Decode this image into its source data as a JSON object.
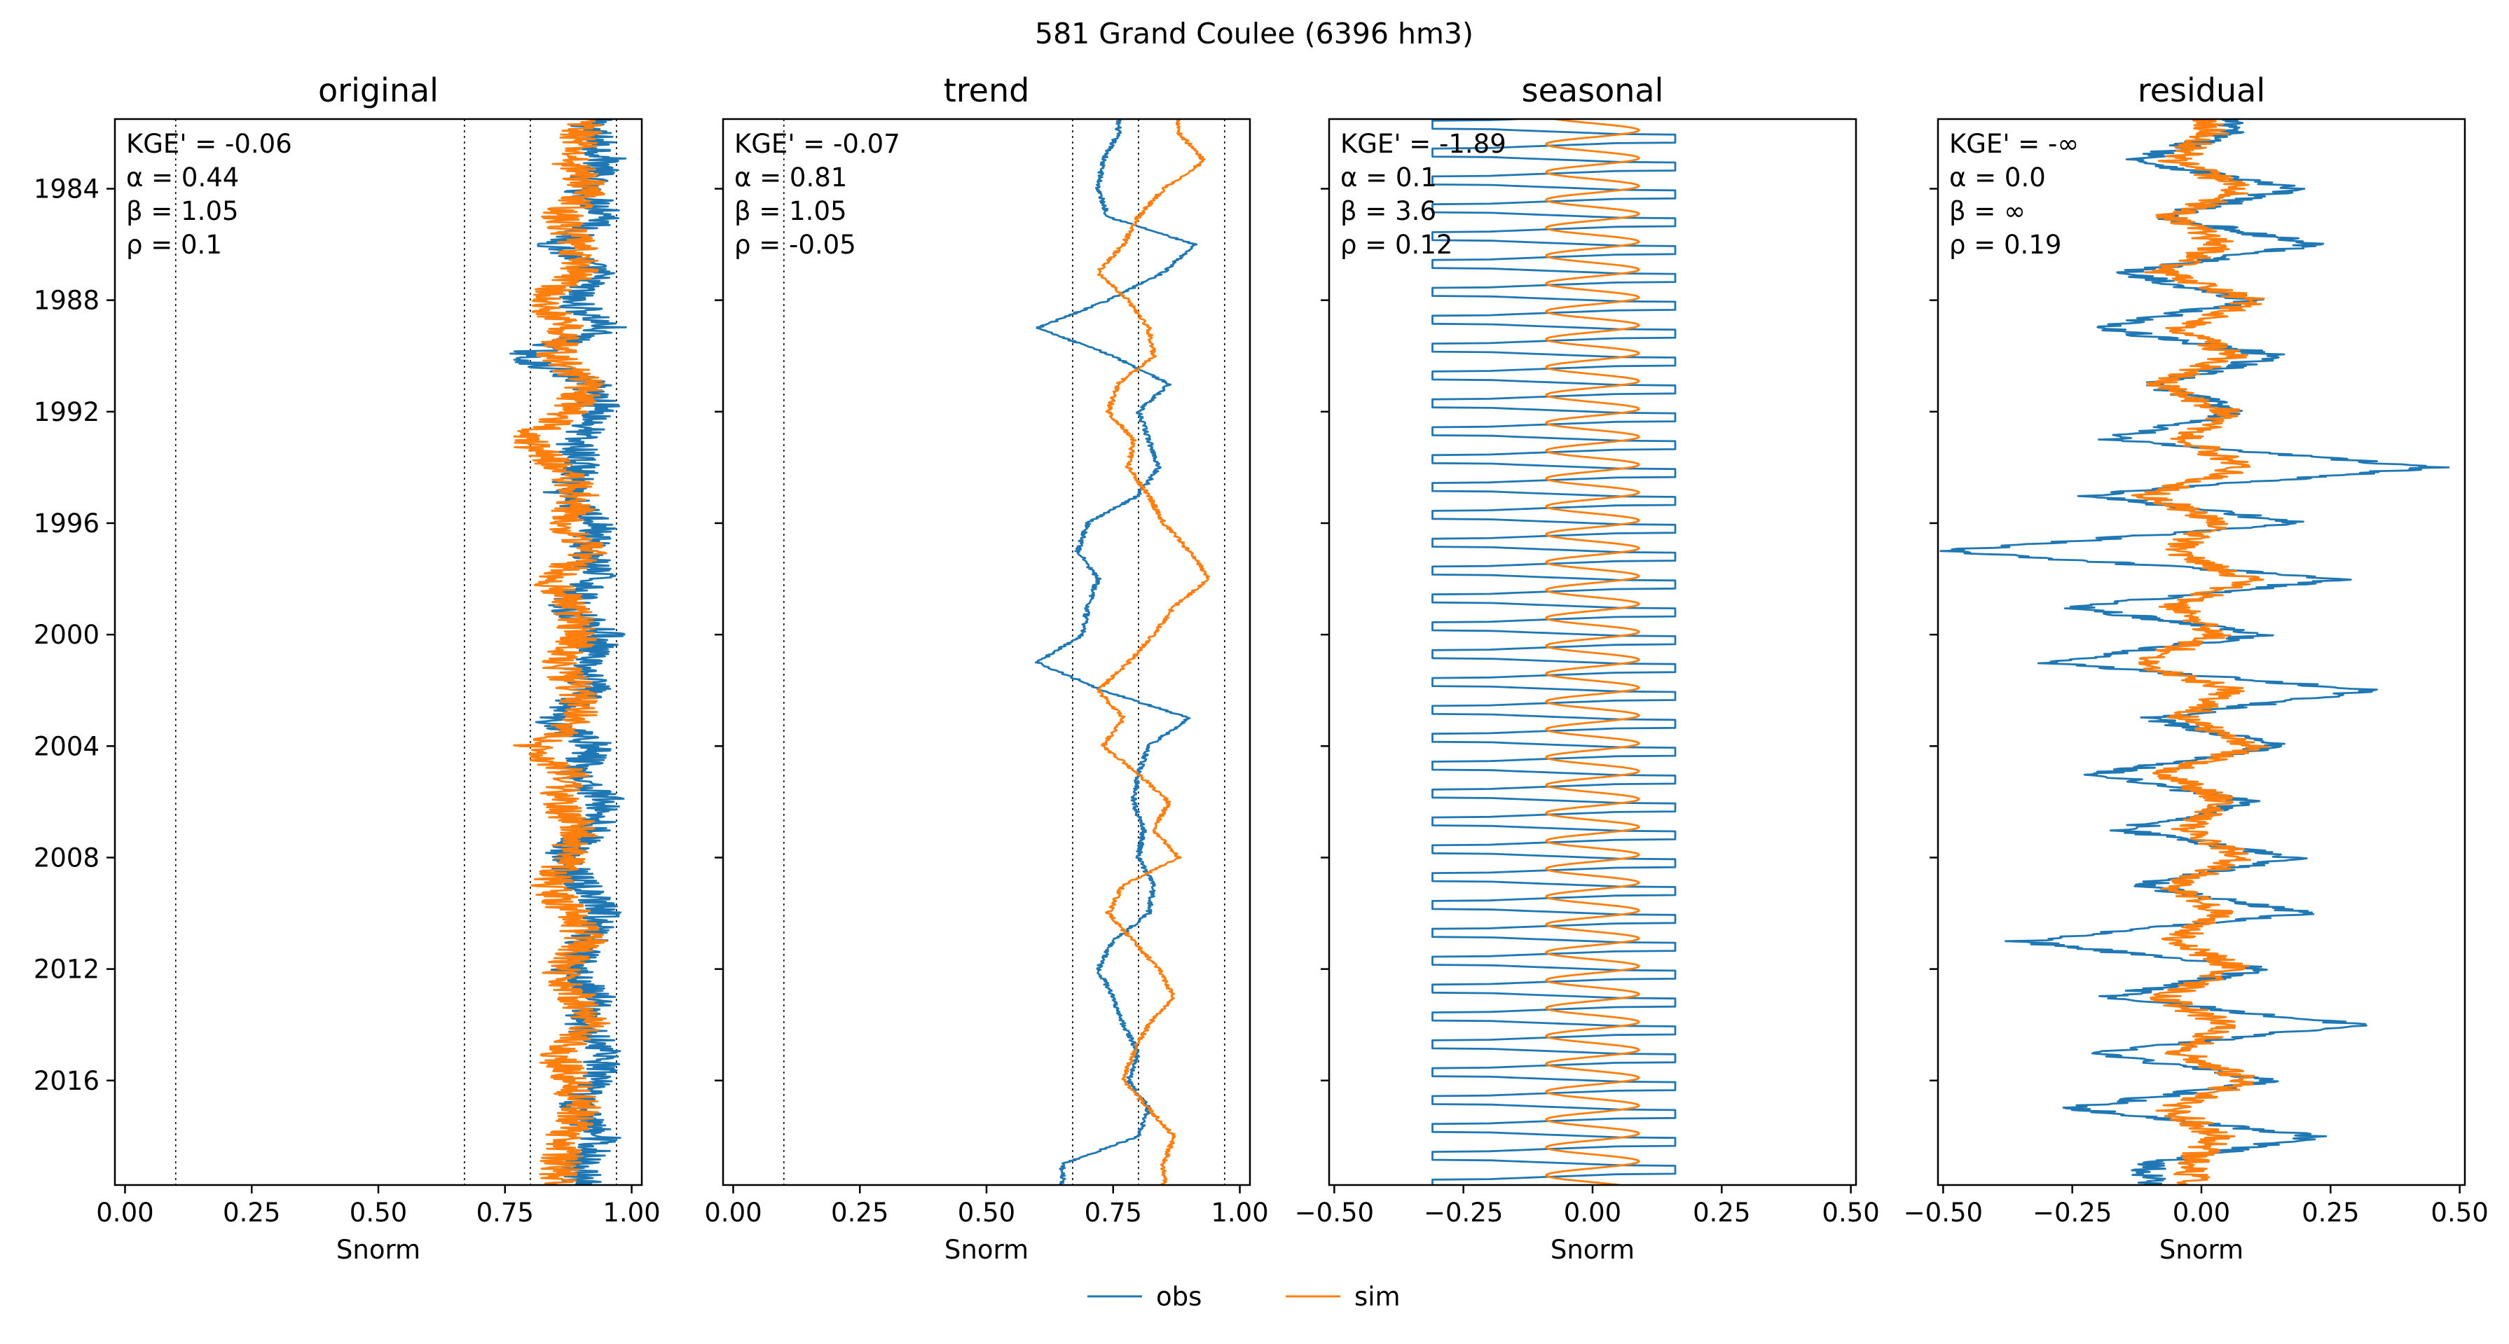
{
  "figure": {
    "suptitle": "581  Grand Coulee (6396 hm3)",
    "legend": [
      {
        "name": "obs",
        "color": "#1f77b4"
      },
      {
        "name": "sim",
        "color": "#ff7f0e"
      }
    ]
  },
  "chart_data": [
    {
      "type": "line",
      "title": "original",
      "xlabel": "Snorm",
      "ylabel": "",
      "xlim": [
        -0.02,
        1.02
      ],
      "xticks": [
        "0.00",
        "0.25",
        "0.50",
        "0.75",
        "1.00"
      ],
      "ylim": [
        "1981-07",
        "2019-10"
      ],
      "yticks": [
        "1984",
        "1988",
        "1992",
        "1996",
        "2000",
        "2004",
        "2008",
        "2012",
        "2016"
      ],
      "reference_lines_x": [
        0.1,
        0.67,
        0.8,
        0.97
      ],
      "stats": [
        "KGE' = -0.06",
        "α = 0.44",
        "β = 1.05",
        "ρ = 0.1"
      ],
      "series": [
        {
          "name": "obs",
          "color": "#1f77b4",
          "years": [
            1982,
            1983,
            1984,
            1985,
            1986,
            1987,
            1988,
            1989,
            1990,
            1991,
            1992,
            1993,
            1994,
            1995,
            1996,
            1997,
            1998,
            1999,
            2000,
            2001,
            2002,
            2003,
            2004,
            2005,
            2006,
            2007,
            2008,
            2009,
            2010,
            2011,
            2012,
            2013,
            2014,
            2015,
            2016,
            2017,
            2018,
            2019
          ],
          "values": [
            0.92,
            0.95,
            0.9,
            0.96,
            0.85,
            0.93,
            0.88,
            0.95,
            0.78,
            0.92,
            0.94,
            0.89,
            0.9,
            0.86,
            0.94,
            0.91,
            0.93,
            0.87,
            0.95,
            0.9,
            0.92,
            0.84,
            0.93,
            0.89,
            0.95,
            0.92,
            0.86,
            0.9,
            0.94,
            0.91,
            0.88,
            0.93,
            0.9,
            0.95,
            0.92,
            0.89,
            0.94,
            0.9
          ]
        },
        {
          "name": "sim",
          "color": "#ff7f0e",
          "years": [
            1982,
            1983,
            1984,
            1985,
            1986,
            1987,
            1988,
            1989,
            1990,
            1991,
            1992,
            1993,
            1994,
            1995,
            1996,
            1997,
            1998,
            1999,
            2000,
            2001,
            2002,
            2003,
            2004,
            2005,
            2006,
            2007,
            2008,
            2009,
            2010,
            2011,
            2012,
            2013,
            2014,
            2015,
            2016,
            2017,
            2018,
            2019
          ],
          "values": [
            0.9,
            0.88,
            0.92,
            0.86,
            0.89,
            0.9,
            0.82,
            0.87,
            0.85,
            0.91,
            0.88,
            0.79,
            0.86,
            0.9,
            0.87,
            0.92,
            0.84,
            0.88,
            0.9,
            0.86,
            0.89,
            0.91,
            0.8,
            0.88,
            0.85,
            0.9,
            0.87,
            0.84,
            0.88,
            0.91,
            0.86,
            0.89,
            0.92,
            0.85,
            0.88,
            0.9,
            0.87,
            0.86
          ]
        }
      ]
    },
    {
      "type": "line",
      "title": "trend",
      "xlabel": "Snorm",
      "ylabel": "",
      "xlim": [
        -0.02,
        1.02
      ],
      "xticks": [
        "0.00",
        "0.25",
        "0.50",
        "0.75",
        "1.00"
      ],
      "ylim": [
        "1981-07",
        "2019-10"
      ],
      "yticks": [
        "1984",
        "1988",
        "1992",
        "1996",
        "2000",
        "2004",
        "2008",
        "2012",
        "2016"
      ],
      "reference_lines_x": [
        0.1,
        0.67,
        0.8,
        0.97
      ],
      "stats": [
        "KGE' = -0.07",
        "α = 0.81",
        "β = 1.05",
        "ρ = -0.05"
      ],
      "series": [
        {
          "name": "obs",
          "color": "#1f77b4",
          "years": [
            1982,
            1983,
            1984,
            1985,
            1986,
            1987,
            1988,
            1989,
            1990,
            1991,
            1992,
            1993,
            1994,
            1995,
            1996,
            1997,
            1998,
            1999,
            2000,
            2001,
            2002,
            2003,
            2004,
            2005,
            2006,
            2007,
            2008,
            2009,
            2010,
            2011,
            2012,
            2013,
            2014,
            2015,
            2016,
            2017,
            2018,
            2019
          ],
          "values": [
            0.76,
            0.73,
            0.72,
            0.74,
            0.91,
            0.85,
            0.74,
            0.6,
            0.75,
            0.86,
            0.8,
            0.82,
            0.84,
            0.8,
            0.7,
            0.68,
            0.72,
            0.7,
            0.69,
            0.6,
            0.73,
            0.9,
            0.82,
            0.8,
            0.79,
            0.81,
            0.8,
            0.83,
            0.82,
            0.75,
            0.72,
            0.75,
            0.77,
            0.8,
            0.78,
            0.82,
            0.8,
            0.65
          ]
        },
        {
          "name": "sim",
          "color": "#ff7f0e",
          "years": [
            1982,
            1983,
            1984,
            1985,
            1986,
            1987,
            1988,
            1989,
            1990,
            1991,
            1992,
            1993,
            1994,
            1995,
            1996,
            1997,
            1998,
            1999,
            2000,
            2001,
            2002,
            2003,
            2004,
            2005,
            2006,
            2007,
            2008,
            2009,
            2010,
            2011,
            2012,
            2013,
            2014,
            2015,
            2016,
            2017,
            2018,
            2019
          ],
          "values": [
            0.88,
            0.93,
            0.85,
            0.8,
            0.77,
            0.72,
            0.78,
            0.82,
            0.83,
            0.76,
            0.74,
            0.79,
            0.78,
            0.82,
            0.85,
            0.9,
            0.94,
            0.87,
            0.83,
            0.78,
            0.72,
            0.77,
            0.73,
            0.8,
            0.86,
            0.83,
            0.88,
            0.77,
            0.74,
            0.79,
            0.84,
            0.87,
            0.82,
            0.79,
            0.77,
            0.82,
            0.87,
            0.85
          ]
        }
      ]
    },
    {
      "type": "line",
      "title": "seasonal",
      "xlabel": "Snorm",
      "ylabel": "",
      "xlim": [
        -0.51,
        0.51
      ],
      "xticks": [
        "−0.50",
        "−0.25",
        "0.00",
        "0.25",
        "0.50"
      ],
      "ylim": [
        "1981-07",
        "2019-10"
      ],
      "yticks": [
        "1984",
        "1988",
        "1992",
        "1996",
        "2000",
        "2004",
        "2008",
        "2012",
        "2016"
      ],
      "reference_lines_x": [],
      "stats": [
        "KGE' = -1.89",
        "α = 0.1",
        "β = 3.6",
        "ρ = 0.12"
      ],
      "series": [
        {
          "name": "obs",
          "color": "#1f77b4",
          "pattern": "annual cycle",
          "min": -0.31,
          "max": 0.16
        },
        {
          "name": "sim",
          "color": "#ff7f0e",
          "pattern": "annual cycle",
          "min": -0.09,
          "max": 0.09
        }
      ]
    },
    {
      "type": "line",
      "title": "residual",
      "xlabel": "Snorm",
      "ylabel": "",
      "xlim": [
        -0.51,
        0.51
      ],
      "xticks": [
        "−0.50",
        "−0.25",
        "0.00",
        "0.25",
        "0.50"
      ],
      "ylim": [
        "1981-07",
        "2019-10"
      ],
      "yticks": [
        "1984",
        "1988",
        "1992",
        "1996",
        "2000",
        "2004",
        "2008",
        "2012",
        "2016"
      ],
      "reference_lines_x": [],
      "stats": [
        "KGE' = -∞",
        "α = 0.0",
        "β = ∞",
        "ρ = 0.19"
      ],
      "series": [
        {
          "name": "obs",
          "color": "#1f77b4",
          "years": [
            1982,
            1983,
            1984,
            1985,
            1986,
            1987,
            1988,
            1989,
            1990,
            1991,
            1992,
            1993,
            1994,
            1995,
            1996,
            1997,
            1998,
            1999,
            2000,
            2001,
            2002,
            2003,
            2004,
            2005,
            2006,
            2007,
            2008,
            2009,
            2010,
            2011,
            2012,
            2013,
            2014,
            2015,
            2016,
            2017,
            2018,
            2019
          ],
          "values": [
            0.05,
            -0.12,
            0.18,
            -0.08,
            0.22,
            -0.15,
            0.1,
            -0.2,
            0.15,
            -0.1,
            0.08,
            -0.18,
            0.45,
            -0.22,
            0.2,
            -0.5,
            0.28,
            -0.25,
            0.12,
            -0.3,
            0.33,
            -0.1,
            0.15,
            -0.2,
            0.1,
            -0.15,
            0.18,
            -0.12,
            0.2,
            -0.35,
            0.12,
            -0.18,
            0.3,
            -0.2,
            0.14,
            -0.25,
            0.22,
            -0.1
          ]
        },
        {
          "name": "sim",
          "color": "#ff7f0e",
          "years": [
            1982,
            1983,
            1984,
            1985,
            1986,
            1987,
            1988,
            1989,
            1990,
            1991,
            1992,
            1993,
            1994,
            1995,
            1996,
            1997,
            1998,
            1999,
            2000,
            2001,
            2002,
            2003,
            2004,
            2005,
            2006,
            2007,
            2008,
            2009,
            2010,
            2011,
            2012,
            2013,
            2014,
            2015,
            2016,
            2017,
            2018,
            2019
          ],
          "values": [
            0.02,
            -0.05,
            0.08,
            -0.06,
            0.04,
            -0.08,
            0.1,
            -0.04,
            0.06,
            -0.09,
            0.05,
            -0.03,
            0.08,
            -0.1,
            0.04,
            -0.06,
            0.09,
            -0.05,
            0.03,
            -0.12,
            0.06,
            -0.04,
            0.1,
            -0.07,
            0.05,
            -0.03,
            0.08,
            -0.06,
            0.04,
            -0.05,
            0.07,
            -0.08,
            0.05,
            -0.04,
            0.09,
            -0.06,
            0.03,
            -0.02
          ]
        }
      ]
    }
  ]
}
